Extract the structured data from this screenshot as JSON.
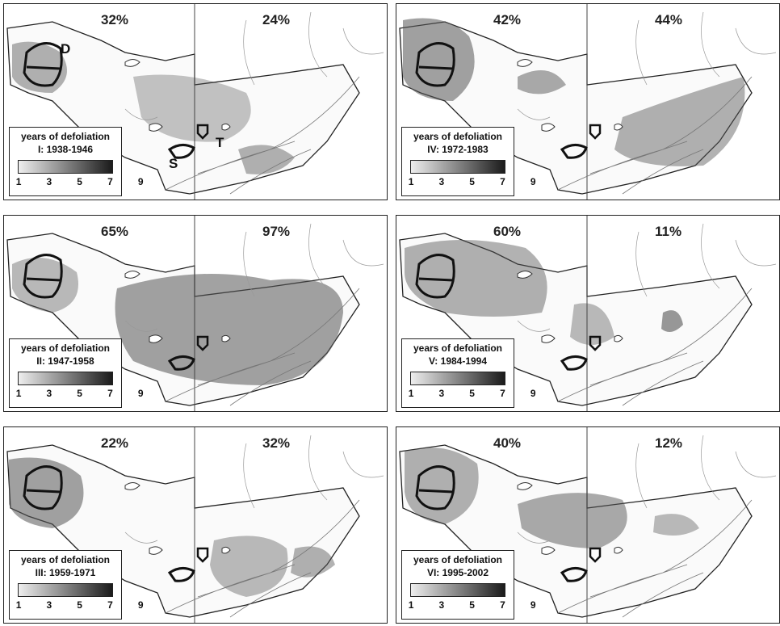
{
  "legend": {
    "title": "years of defoliation",
    "ticks": [
      "1",
      "3",
      "5",
      "7",
      "9"
    ]
  },
  "panels": [
    {
      "period": "I: 1938-1946",
      "pct_west": "32%",
      "pct_east": "24%",
      "labels": [
        "D",
        "T",
        "S"
      ]
    },
    {
      "period": "IV: 1972-1983",
      "pct_west": "42%",
      "pct_east": "44%"
    },
    {
      "period": "II: 1947-1958",
      "pct_west": "65%",
      "pct_east": "97%"
    },
    {
      "period": "V: 1984-1994",
      "pct_west": "60%",
      "pct_east": "11%"
    },
    {
      "period": "III: 1959-1971",
      "pct_west": "22%",
      "pct_east": "32%"
    },
    {
      "period": "VI: 1995-2002",
      "pct_west": "40%",
      "pct_east": "12%"
    }
  ],
  "colors": {
    "border": "#222222",
    "shade_light": "#d4d4d4",
    "shade_mid": "#a8a8a8",
    "shade_dark": "#6a6a6a"
  }
}
